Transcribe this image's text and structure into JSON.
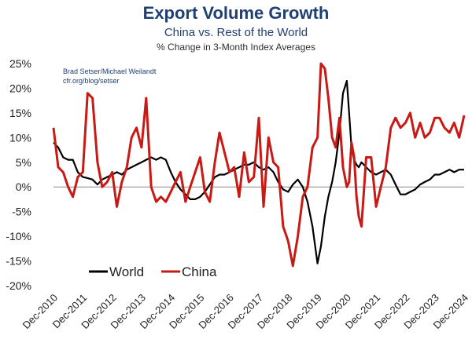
{
  "chart_data": {
    "type": "line",
    "title": "Export Volume Growth",
    "subtitle": "China vs. Rest of the World",
    "ylabel_note": "% Change in 3-Month Index Averages",
    "source_line1": "Brad Setser/Michael Weilandt",
    "source_line2": "cfr.org/blog/setser",
    "ylim": [
      -20,
      25
    ],
    "y_ticks": [
      "25%",
      "20%",
      "15%",
      "10%",
      "5%",
      "0%",
      "-5%",
      "-10%",
      "-15%",
      "-20%"
    ],
    "x_ticks": [
      "Dec-2010",
      "Dec-2011",
      "Dec-2012",
      "Dec-2013",
      "Dec-2014",
      "Dec-2015",
      "Dec-2016",
      "Dec-2017",
      "Dec-2018",
      "Dec-2019",
      "Dec-2020",
      "Dec-2021",
      "Dec-2022",
      "Dec-2023",
      "Dec-2024"
    ],
    "grid": false,
    "legend_position": "bottom-left",
    "series": [
      {
        "name": "World",
        "color": "#000000",
        "x": [
          2010.96,
          2011.12,
          2011.29,
          2011.46,
          2011.62,
          2011.79,
          2011.96,
          2012.12,
          2012.29,
          2012.46,
          2012.62,
          2012.79,
          2012.96,
          2013.12,
          2013.29,
          2013.46,
          2013.62,
          2013.79,
          2013.96,
          2014.12,
          2014.29,
          2014.46,
          2014.62,
          2014.79,
          2014.96,
          2015.12,
          2015.29,
          2015.46,
          2015.62,
          2015.79,
          2015.96,
          2016.12,
          2016.29,
          2016.46,
          2016.62,
          2016.79,
          2016.96,
          2017.12,
          2017.29,
          2017.46,
          2017.62,
          2017.79,
          2017.96,
          2018.12,
          2018.29,
          2018.46,
          2018.62,
          2018.79,
          2018.96,
          2019.12,
          2019.29,
          2019.46,
          2019.62,
          2019.79,
          2019.96,
          2020.08,
          2020.21,
          2020.33,
          2020.46,
          2020.58,
          2020.71,
          2020.83,
          2020.96,
          2021.04,
          2021.12,
          2021.21,
          2021.29,
          2021.37,
          2021.46,
          2021.62,
          2021.79,
          2021.96,
          2022.12,
          2022.29,
          2022.46,
          2022.62,
          2022.79,
          2022.96,
          2023.12,
          2023.29,
          2023.46,
          2023.62,
          2023.79,
          2023.96,
          2024.12,
          2024.29,
          2024.46,
          2024.62,
          2024.79,
          2024.96
        ],
        "y": [
          9,
          8,
          6,
          5.5,
          5.5,
          3,
          2,
          1.8,
          1.5,
          0.5,
          1.5,
          2,
          2.5,
          3,
          2.5,
          3.5,
          4,
          4.5,
          5,
          5.5,
          6,
          5.5,
          6,
          5.5,
          3,
          1,
          -0.5,
          -1.5,
          -2.5,
          -2.5,
          -2,
          -1,
          0.5,
          2,
          2.5,
          2.5,
          3,
          3.5,
          4,
          4.5,
          4.5,
          5,
          4,
          3.5,
          4,
          3,
          1,
          -0.5,
          -1,
          0.5,
          1.5,
          0,
          -3,
          -8,
          -15.5,
          -12,
          -6,
          -2,
          1,
          5,
          11,
          19,
          21.5,
          15,
          8,
          5.5,
          4.5,
          4,
          5,
          4,
          3,
          2.5,
          3,
          3.5,
          2.5,
          0.5,
          -1.5,
          -1.5,
          -1,
          -0.5,
          0.5,
          1,
          1.5,
          2.5,
          2.5,
          3,
          3.5,
          3,
          3.5,
          3.5
        ]
      },
      {
        "name": "China",
        "color": "#c81914",
        "x": [
          2010.96,
          2011.12,
          2011.29,
          2011.46,
          2011.62,
          2011.79,
          2011.96,
          2012.12,
          2012.29,
          2012.46,
          2012.62,
          2012.79,
          2012.96,
          2013.12,
          2013.29,
          2013.46,
          2013.62,
          2013.79,
          2013.96,
          2014.12,
          2014.29,
          2014.46,
          2014.62,
          2014.79,
          2014.96,
          2015.12,
          2015.29,
          2015.46,
          2015.62,
          2015.79,
          2015.96,
          2016.12,
          2016.29,
          2016.46,
          2016.62,
          2016.79,
          2016.96,
          2017.12,
          2017.29,
          2017.46,
          2017.62,
          2017.79,
          2017.96,
          2018.12,
          2018.29,
          2018.46,
          2018.62,
          2018.79,
          2018.96,
          2019.12,
          2019.29,
          2019.46,
          2019.62,
          2019.79,
          2019.96,
          2020.08,
          2020.21,
          2020.33,
          2020.46,
          2020.58,
          2020.71,
          2020.83,
          2020.96,
          2021.04,
          2021.12,
          2021.21,
          2021.29,
          2021.37,
          2021.46,
          2021.62,
          2021.79,
          2021.96,
          2022.12,
          2022.29,
          2022.46,
          2022.62,
          2022.79,
          2022.96,
          2023.12,
          2023.29,
          2023.46,
          2023.62,
          2023.79,
          2023.96,
          2024.12,
          2024.29,
          2024.46,
          2024.62,
          2024.79,
          2024.96
        ],
        "y": [
          12,
          4,
          3,
          0,
          -2,
          2,
          3,
          19,
          18,
          5,
          0,
          1,
          3,
          -4,
          1,
          4,
          10,
          12,
          8,
          18,
          0,
          -3,
          -2,
          -3,
          -1,
          1,
          3,
          -3,
          0,
          3,
          6,
          -1,
          -3,
          5,
          11,
          7,
          3,
          4,
          -2,
          7,
          1,
          2,
          14,
          -4,
          10,
          5,
          4,
          -8,
          -11,
          -16,
          -10,
          -2,
          0,
          8,
          10,
          27,
          24,
          18,
          10,
          8,
          14,
          4,
          0,
          1,
          9,
          6,
          -2,
          -6,
          -8,
          6,
          6,
          -4,
          0,
          4,
          12,
          14,
          12,
          13,
          15,
          10,
          13,
          10,
          11,
          14,
          14,
          12,
          11,
          13,
          10,
          14.5
        ]
      }
    ]
  }
}
